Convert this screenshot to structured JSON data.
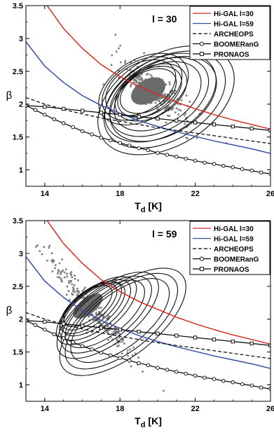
{
  "chart_data": [
    {
      "type": "line",
      "title": "l = 30",
      "xlabel_main": "T",
      "xlabel_sub": "d",
      "xlabel_unit": "[K]",
      "ylabel": "β",
      "xlim": [
        13,
        26
      ],
      "ylim": [
        0.75,
        3.5
      ],
      "x_ticks": [
        "14",
        "18",
        "22",
        "26"
      ],
      "y_ticks": [
        "1",
        "1.5",
        "2",
        "2.5",
        "3",
        "3.5"
      ],
      "legend_position": "top-right",
      "colors": {
        "hg30": "#d62a1e",
        "hg59": "#3550a8",
        "contour": "#111111",
        "scatter": "#7d7d7d",
        "fill": "#6b6b6b"
      },
      "series": [
        {
          "name": "Hi-GAL l=30",
          "style": "red-solid",
          "x": [
            13,
            14,
            15,
            16,
            17,
            18,
            19,
            20,
            21,
            22,
            23,
            24,
            25,
            26
          ],
          "y": [
            4.2,
            3.55,
            3.15,
            2.85,
            2.6,
            2.42,
            2.27,
            2.15,
            2.03,
            1.93,
            1.84,
            1.76,
            1.69,
            1.62
          ]
        },
        {
          "name": "Hi-GAL l=59",
          "style": "blue-solid",
          "x": [
            13,
            14,
            15,
            16,
            17,
            18,
            19,
            20,
            21,
            22,
            23,
            24,
            25,
            26
          ],
          "y": [
            2.95,
            2.58,
            2.33,
            2.13,
            1.98,
            1.86,
            1.75,
            1.66,
            1.58,
            1.51,
            1.44,
            1.38,
            1.32,
            1.25
          ]
        },
        {
          "name": "ARCHEOPS",
          "style": "black-dashed",
          "x": [
            13,
            14,
            15,
            16,
            17,
            18,
            19,
            20,
            21,
            22,
            23,
            24,
            25,
            26
          ],
          "y": [
            2.1,
            2.0,
            1.92,
            1.85,
            1.79,
            1.74,
            1.69,
            1.64,
            1.6,
            1.56,
            1.52,
            1.48,
            1.44,
            1.4
          ]
        },
        {
          "name": "BOOMERanG",
          "style": "black-circles",
          "x": [
            13,
            13.5,
            14,
            14.5,
            15,
            15.5,
            16,
            16.5,
            17,
            17.5,
            18,
            18.5,
            19,
            19.5,
            20,
            20.5,
            21,
            21.5,
            22,
            22.5,
            23,
            23.5,
            24,
            24.5,
            25,
            25.5,
            26
          ],
          "y": [
            1.98,
            1.91,
            1.84,
            1.77,
            1.71,
            1.65,
            1.59,
            1.54,
            1.49,
            1.45,
            1.41,
            1.37,
            1.33,
            1.3,
            1.26,
            1.23,
            1.2,
            1.17,
            1.14,
            1.11,
            1.09,
            1.06,
            1.04,
            1.01,
            0.99,
            0.96,
            0.94
          ]
        },
        {
          "name": "PRONAOS",
          "style": "black-squares",
          "x": [
            13,
            14,
            15,
            16,
            17,
            18,
            19,
            20,
            21,
            22,
            23,
            24,
            25,
            26
          ],
          "y": [
            1.98,
            1.96,
            1.93,
            1.9,
            1.87,
            1.84,
            1.81,
            1.78,
            1.75,
            1.72,
            1.69,
            1.66,
            1.63,
            1.6
          ]
        }
      ],
      "contours": {
        "cx": 19.5,
        "cy": 2.2,
        "scales": [
          1,
          1.25,
          1.55,
          1.9
        ],
        "offsets": [
          [
            0,
            0
          ],
          [
            -0.4,
            0.05
          ],
          [
            0.5,
            -0.08
          ],
          [
            0.8,
            -0.12
          ]
        ],
        "rx": 1.8,
        "ry": 0.32,
        "angle": -30
      },
      "scatter": {
        "cx": 19.8,
        "cy": 2.2,
        "spread_x": 1.8,
        "spread_y": 0.28,
        "slope": -0.22
      }
    },
    {
      "type": "line",
      "title": "l = 59",
      "xlabel_main": "T",
      "xlabel_sub": "d",
      "xlabel_unit": "[K]",
      "ylabel": "β",
      "xlim": [
        13,
        26
      ],
      "ylim": [
        0.75,
        3.5
      ],
      "x_ticks": [
        "14",
        "18",
        "22",
        "26"
      ],
      "y_ticks": [
        "1",
        "1.5",
        "2",
        "2.5",
        "3",
        "3.5"
      ],
      "legend_position": "top-right",
      "colors": {
        "hg30": "#d62a1e",
        "hg59": "#3550a8",
        "contour": "#111111",
        "scatter": "#7d7d7d",
        "fill": "#6b6b6b"
      },
      "series": [
        {
          "name": "Hi-GAL l=30",
          "style": "red-solid",
          "x": [
            13,
            14,
            15,
            16,
            17,
            18,
            19,
            20,
            21,
            22,
            23,
            24,
            25,
            26
          ],
          "y": [
            4.2,
            3.55,
            3.15,
            2.85,
            2.6,
            2.42,
            2.27,
            2.15,
            2.03,
            1.93,
            1.84,
            1.76,
            1.69,
            1.62
          ]
        },
        {
          "name": "Hi-GAL l=59",
          "style": "blue-solid",
          "x": [
            13,
            14,
            15,
            16,
            17,
            18,
            19,
            20,
            21,
            22,
            23,
            24,
            25,
            26
          ],
          "y": [
            2.95,
            2.58,
            2.33,
            2.13,
            1.98,
            1.86,
            1.75,
            1.66,
            1.58,
            1.51,
            1.44,
            1.38,
            1.32,
            1.25
          ]
        },
        {
          "name": "ARCHEOPS",
          "style": "black-dashed",
          "x": [
            13,
            14,
            15,
            16,
            17,
            18,
            19,
            20,
            21,
            22,
            23,
            24,
            25,
            26
          ],
          "y": [
            2.1,
            2.0,
            1.92,
            1.85,
            1.79,
            1.74,
            1.69,
            1.64,
            1.6,
            1.56,
            1.52,
            1.48,
            1.44,
            1.4
          ]
        },
        {
          "name": "BOOMERanG",
          "style": "black-circles",
          "x": [
            13,
            13.5,
            14,
            14.5,
            15,
            15.5,
            16,
            16.5,
            17,
            17.5,
            18,
            18.5,
            19,
            19.5,
            20,
            20.5,
            21,
            21.5,
            22,
            22.5,
            23,
            23.5,
            24,
            24.5,
            25,
            25.5,
            26
          ],
          "y": [
            1.98,
            1.91,
            1.84,
            1.77,
            1.71,
            1.65,
            1.59,
            1.54,
            1.49,
            1.45,
            1.41,
            1.37,
            1.33,
            1.3,
            1.26,
            1.23,
            1.2,
            1.17,
            1.14,
            1.11,
            1.09,
            1.06,
            1.04,
            1.01,
            0.99,
            0.96,
            0.94
          ]
        },
        {
          "name": "PRONAOS",
          "style": "black-squares",
          "x": [
            13,
            14,
            15,
            16,
            17,
            18,
            19,
            20,
            21,
            22,
            23,
            24,
            25,
            26
          ],
          "y": [
            1.98,
            1.96,
            1.93,
            1.9,
            1.87,
            1.84,
            1.81,
            1.78,
            1.75,
            1.72,
            1.69,
            1.66,
            1.63,
            1.6
          ]
        }
      ],
      "contours": {
        "cx": 16.3,
        "cy": 2.2,
        "scales": [
          1,
          1.3,
          1.65,
          2.05
        ],
        "offsets": [
          [
            0,
            0
          ],
          [
            0.3,
            -0.05
          ],
          [
            0.9,
            -0.12
          ],
          [
            1.7,
            -0.22
          ]
        ],
        "rx": 1.7,
        "ry": 0.22,
        "angle": -38
      },
      "scatter": {
        "cx": 16.5,
        "cy": 2.15,
        "spread_x": 2.2,
        "spread_y": 0.22,
        "slope": -0.32
      }
    }
  ]
}
